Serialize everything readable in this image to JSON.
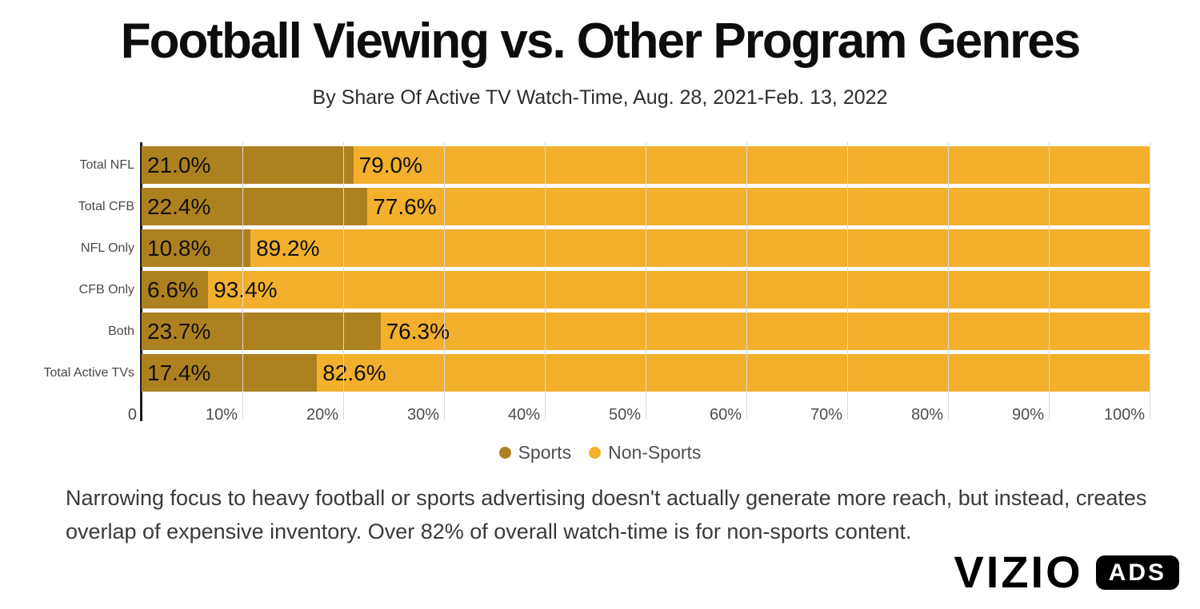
{
  "title": "Football Viewing vs. Other Program Genres",
  "subtitle": "By Share Of Active TV Watch-Time, Aug. 28, 2021-Feb. 13, 2022",
  "chart_data": {
    "type": "bar",
    "orientation": "horizontal",
    "stacked": true,
    "title": "Football Viewing vs. Other Program Genres",
    "subtitle": "By Share Of Active TV Watch-Time, Aug. 28, 2021-Feb. 13, 2022",
    "categories": [
      "Total NFL",
      "Total CFB",
      "NFL Only",
      "CFB Only",
      "Both",
      "Total Active TVs"
    ],
    "series": [
      {
        "name": "Sports",
        "color": "#AE8120",
        "values": [
          21.0,
          22.4,
          10.8,
          6.6,
          23.7,
          17.4
        ],
        "labels": [
          "21.0%",
          "22.4%",
          "10.8%",
          "6.6%",
          "23.7%",
          "17.4%"
        ]
      },
      {
        "name": "Non-Sports",
        "color": "#F2B02D",
        "values": [
          79.0,
          77.6,
          89.2,
          93.4,
          76.3,
          82.6
        ],
        "labels": [
          "79.0%",
          "77.6%",
          "89.2%",
          "93.4%",
          "76.3%",
          "82.6%"
        ]
      }
    ],
    "xlabel": "",
    "ylabel": "",
    "xlim": [
      0,
      100
    ],
    "x_ticks": [
      "0",
      "10%",
      "20%",
      "30%",
      "40%",
      "50%",
      "60%",
      "70%",
      "80%",
      "90%",
      "100%"
    ],
    "grid": true,
    "legend_position": "bottom"
  },
  "legend": {
    "items": [
      {
        "label": "Sports",
        "color": "#AE8120"
      },
      {
        "label": "Non-Sports",
        "color": "#F2B02D"
      }
    ]
  },
  "footer": {
    "text": "Narrowing focus to heavy football or sports advertising doesn't actually generate more reach, but instead, creates overlap of expensive inventory. Over 82% of overall watch-time is for non-sports content."
  },
  "branding": {
    "wordmark": "VIZIO",
    "badge": "ADS"
  },
  "colors": {
    "sports": "#AE8120",
    "non_sports": "#F2B02D",
    "gridline": "#d9d9d9",
    "axis_line": "#1f1f1f",
    "background": "#ffffff"
  }
}
